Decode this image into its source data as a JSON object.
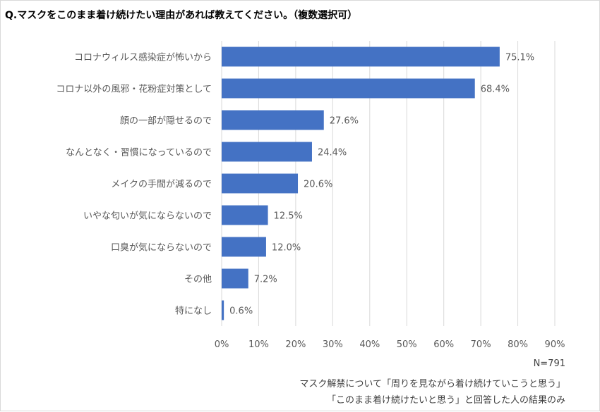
{
  "title": "Q.マスクをこのまま着け続けたい理由があれば教えてください。（複数選択可）",
  "chart_data": {
    "type": "bar",
    "orientation": "horizontal",
    "categories": [
      "コロナウィルス感染症が怖いから",
      "コロナ以外の風邪・花粉症対策として",
      "顔の一部が隠せるので",
      "なんとなく・習慣になっているので",
      "メイクの手間が減るので",
      "いやな匂いが気にならないので",
      "口臭が気にならないので",
      "その他",
      "特になし"
    ],
    "values": [
      75.1,
      68.4,
      27.6,
      24.4,
      20.6,
      12.5,
      12.0,
      7.2,
      0.6
    ],
    "value_labels": [
      "75.1%",
      "68.4%",
      "27.6%",
      "24.4%",
      "20.6%",
      "12.5%",
      "12.0%",
      "7.2%",
      "0.6%"
    ],
    "xlim": [
      0,
      90
    ],
    "xticks": [
      0,
      10,
      20,
      30,
      40,
      50,
      60,
      70,
      80,
      90
    ],
    "xtick_labels": [
      "0%",
      "10%",
      "20%",
      "30%",
      "40%",
      "50%",
      "60%",
      "70%",
      "80%",
      "90%"
    ],
    "grid": true,
    "bar_color": "#4472c4",
    "grid_color": "#d9d9d9"
  },
  "notes": {
    "n": "N=791",
    "line1": "マスク解禁について「周りを見ながら着け続けていこうと思う」",
    "line2": "「このまま着け続けたいと思う」と回答した人の結果のみ"
  }
}
